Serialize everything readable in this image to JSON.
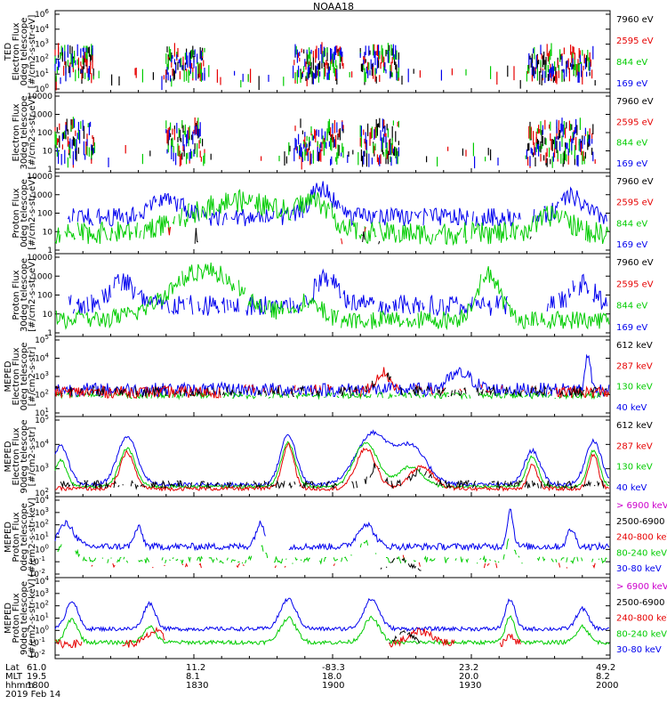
{
  "title": "NOAA18",
  "date": "2019 Feb 14",
  "colors": {
    "black": "#000000",
    "red": "#e60000",
    "green": "#00cc00",
    "blue": "#0000ee",
    "magenta": "#cc00cc"
  },
  "footer": {
    "row_labels": [
      "Lat",
      "MLT",
      "hhmm"
    ],
    "ticks": [
      {
        "lat": "61.0",
        "mlt": "19.5",
        "hhmm": "1800"
      },
      {
        "lat": "11.2",
        "mlt": "8.1",
        "hhmm": "1830"
      },
      {
        "lat": "-83.3",
        "mlt": "18.0",
        "hhmm": "1900"
      },
      {
        "lat": "23.2",
        "mlt": "20.0",
        "hhmm": "1930"
      },
      {
        "lat": "49.2",
        "mlt": "8.2",
        "hhmm": "2000"
      }
    ]
  },
  "chart_data": [
    {
      "type": "scatter",
      "ylabel": [
        "TED",
        "Electron Flux",
        "0deg telescope",
        "[#/cm2-s-str-eV]"
      ],
      "yticks": [
        "10^6",
        "10^4",
        "10^3",
        "10^2",
        "10^1",
        "10^0"
      ],
      "ylim_log10": [
        0,
        6
      ],
      "legend": [
        {
          "label": "7960 eV",
          "color": "black"
        },
        {
          "label": "2595 eV",
          "color": "red"
        },
        {
          "label": "844 eV",
          "color": "green"
        },
        {
          "label": "169 eV",
          "color": "blue"
        }
      ],
      "series": [
        {
          "color": "black",
          "profile": "ted0"
        },
        {
          "color": "red",
          "profile": "ted0"
        },
        {
          "color": "green",
          "profile": "ted0"
        },
        {
          "color": "blue",
          "profile": "ted0"
        }
      ]
    },
    {
      "type": "scatter",
      "ylabel": [
        "Electron Flux",
        "30deg telescope",
        "[#/cm2-s-str-eV]"
      ],
      "yticks": [
        "10000",
        "1000",
        "100",
        "10",
        "1"
      ],
      "ylim_log10": [
        0,
        4
      ],
      "legend": [
        {
          "label": "7960 eV",
          "color": "black"
        },
        {
          "label": "2595 eV",
          "color": "red"
        },
        {
          "label": "844 eV",
          "color": "green"
        },
        {
          "label": "169 eV",
          "color": "blue"
        }
      ],
      "series": [
        {
          "color": "black",
          "profile": "ted30"
        },
        {
          "color": "red",
          "profile": "ted30"
        },
        {
          "color": "green",
          "profile": "ted30"
        },
        {
          "color": "blue",
          "profile": "ted30"
        }
      ]
    },
    {
      "type": "line",
      "ylabel": [
        "Proton Flux",
        "0deg telescope",
        "[#/cm2-s-str-eV]"
      ],
      "yticks": [
        "10000",
        "1000",
        "100",
        "10",
        "1"
      ],
      "ylim_log10": [
        0,
        4
      ],
      "legend": [
        {
          "label": "7960 eV",
          "color": "black"
        },
        {
          "label": "2595 eV",
          "color": "red"
        },
        {
          "label": "844 eV",
          "color": "green"
        },
        {
          "label": "169 eV",
          "color": "blue"
        }
      ],
      "series": [
        {
          "color": "blue",
          "profile": "prot0_blue"
        },
        {
          "color": "green",
          "profile": "prot0_green"
        },
        {
          "color": "black",
          "profile": "sparse_low"
        },
        {
          "color": "red",
          "profile": "sparse_low"
        }
      ]
    },
    {
      "type": "line",
      "ylabel": [
        "Proton Flux",
        "30deg telescope",
        "[#/cm2-s-str-eV]"
      ],
      "yticks": [
        "10000",
        "1000",
        "100",
        "10",
        "1"
      ],
      "ylim_log10": [
        0,
        4
      ],
      "legend": [
        {
          "label": "7960 eV",
          "color": "black"
        },
        {
          "label": "2595 eV",
          "color": "red"
        },
        {
          "label": "844 eV",
          "color": "green"
        },
        {
          "label": "169 eV",
          "color": "blue"
        }
      ],
      "series": [
        {
          "color": "blue",
          "profile": "prot30_blue"
        },
        {
          "color": "green",
          "profile": "prot30_green"
        }
      ]
    },
    {
      "type": "line",
      "ylabel": [
        "MEPED",
        "Electron Flux",
        "0deg telescope",
        "[#/cm2-s-str]"
      ],
      "yticks": [
        "10^5",
        "10^4",
        "10^3",
        "10^2",
        "10^1"
      ],
      "ylim_log10": [
        1,
        5
      ],
      "legend": [
        {
          "label": "612 keV",
          "color": "black"
        },
        {
          "label": "287 keV",
          "color": "red"
        },
        {
          "label": "130 keV",
          "color": "green"
        },
        {
          "label": "40 keV",
          "color": "blue"
        }
      ],
      "series": [
        {
          "color": "blue",
          "profile": "mepe0_blue"
        },
        {
          "color": "green",
          "profile": "mepe0_green"
        },
        {
          "color": "red",
          "profile": "mepe0_red"
        },
        {
          "color": "black",
          "profile": "mepe0_black"
        }
      ]
    },
    {
      "type": "line",
      "ylabel": [
        "MEPED",
        "Electron Flux",
        "90deg telescope",
        "[#/cm2-s-str]"
      ],
      "yticks": [
        "10^5",
        "10^4",
        "10^3",
        "10^2"
      ],
      "ylim_log10": [
        1.5,
        5.5
      ],
      "legend": [
        {
          "label": "612 keV",
          "color": "black"
        },
        {
          "label": "287 keV",
          "color": "red"
        },
        {
          "label": "130 keV",
          "color": "green"
        },
        {
          "label": "40 keV",
          "color": "blue"
        }
      ],
      "series": [
        {
          "color": "blue",
          "profile": "mepe90_blue"
        },
        {
          "color": "green",
          "profile": "mepe90_green"
        },
        {
          "color": "red",
          "profile": "mepe90_red"
        },
        {
          "color": "black",
          "profile": "mepe90_black"
        }
      ]
    },
    {
      "type": "line",
      "ylabel": [
        "MEPED",
        "Proton Flux",
        "0deg telescope",
        "[#/cm2-s-str-keV]"
      ],
      "yticks": [
        "10^4",
        "10^3",
        "10^2",
        "10^1",
        "10^0",
        "10^-1",
        "10^-2"
      ],
      "ylim_log10": [
        -2,
        4
      ],
      "legend": [
        {
          "label": "> 6900 keV",
          "color": "magenta"
        },
        {
          "label": "2500-6900",
          "color": "black"
        },
        {
          "label": "240-800 keV",
          "color": "red"
        },
        {
          "label": "80-240 keV",
          "color": "green"
        },
        {
          "label": "30-80 keV",
          "color": "blue"
        }
      ],
      "series": [
        {
          "color": "blue",
          "profile": "mepp0_blue"
        },
        {
          "color": "green",
          "profile": "mepp0_green"
        },
        {
          "color": "red",
          "profile": "mepp0_red"
        },
        {
          "color": "black",
          "profile": "mepp0_black"
        }
      ]
    },
    {
      "type": "line",
      "ylabel": [
        "MEPED",
        "Proton Flux",
        "90deg telescope",
        "[#/cm2-s-str-keV]"
      ],
      "yticks": [
        "10^4",
        "10^3",
        "10^2",
        "10^1",
        "10^0",
        "10^-1",
        "10^-2"
      ],
      "ylim_log10": [
        -2,
        4
      ],
      "legend": [
        {
          "label": "> 6900 keV",
          "color": "magenta"
        },
        {
          "label": "2500-6900",
          "color": "black"
        },
        {
          "label": "240-800 keV",
          "color": "red"
        },
        {
          "label": "80-240 keV",
          "color": "green"
        },
        {
          "label": "30-80 keV",
          "color": "blue"
        }
      ],
      "series": [
        {
          "color": "blue",
          "profile": "mepp90_blue"
        },
        {
          "color": "green",
          "profile": "mepp90_green"
        },
        {
          "color": "red",
          "profile": "mepp90_red"
        },
        {
          "color": "black",
          "profile": "mepp90_black"
        }
      ]
    }
  ]
}
